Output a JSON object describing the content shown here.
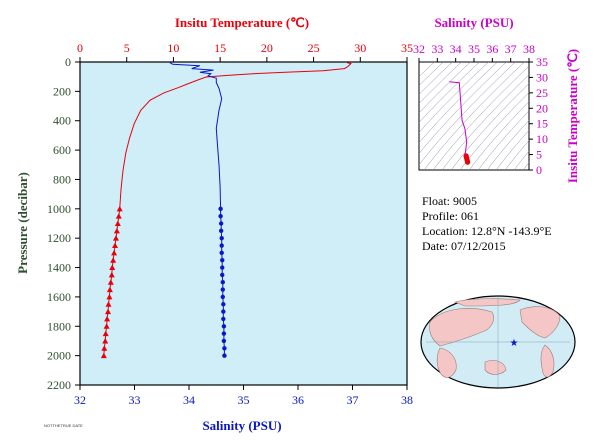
{
  "colors": {
    "temperature": "#e8000b",
    "salinity": "#0a17c8",
    "inset_axis": "#cc00cc",
    "axis_label": "#2f4f2f",
    "plot_bg": "#cfeef7",
    "land": "#f5c6c6",
    "ocean": "#d2ecf5"
  },
  "chart_data": [
    {
      "type": "line",
      "top_axis_title": "Insitu Temperature (℃)",
      "bottom_axis_title": "Salinity (PSU)",
      "ylabel": "Pressure (decibar)",
      "temperature_ticks": [
        "0",
        "5",
        "10",
        "15",
        "20",
        "25",
        "30",
        "35"
      ],
      "salinity_ticks": [
        "32",
        "33",
        "34",
        "35",
        "36",
        "37",
        "38"
      ],
      "pressure_ticks": [
        "0",
        "200",
        "400",
        "600",
        "800",
        "1000",
        "1200",
        "1400",
        "1600",
        "1800",
        "2000",
        "2200"
      ],
      "temperature_range": [
        0,
        35
      ],
      "salinity_range": [
        32,
        38
      ],
      "pressure_range": [
        0,
        2200
      ],
      "series": [
        {
          "kind": "temperature",
          "points": [
            [
              28.6,
              5
            ],
            [
              29.0,
              10
            ],
            [
              28.7,
              30
            ],
            [
              28.3,
              45
            ],
            [
              26.0,
              60
            ],
            [
              22.0,
              70
            ],
            [
              19.0,
              78
            ],
            [
              16.0,
              90
            ],
            [
              13.5,
              102
            ],
            [
              12.5,
              125
            ],
            [
              11.5,
              150
            ],
            [
              10.5,
              175
            ],
            [
              9.0,
              210
            ],
            [
              7.5,
              260
            ],
            [
              6.5,
              330
            ],
            [
              5.8,
              420
            ],
            [
              5.3,
              520
            ],
            [
              4.9,
              620
            ],
            [
              4.6,
              740
            ],
            [
              4.4,
              860
            ],
            [
              4.3,
              950
            ],
            [
              4.25,
              1000
            ]
          ],
          "marked_points": [
            [
              4.25,
              1000
            ],
            [
              4.15,
              1050
            ],
            [
              4.05,
              1100
            ],
            [
              3.95,
              1150
            ],
            [
              3.85,
              1200
            ],
            [
              3.75,
              1250
            ],
            [
              3.65,
              1300
            ],
            [
              3.55,
              1350
            ],
            [
              3.45,
              1400
            ],
            [
              3.4,
              1450
            ],
            [
              3.3,
              1500
            ],
            [
              3.2,
              1550
            ],
            [
              3.15,
              1600
            ],
            [
              3.05,
              1650
            ],
            [
              3.0,
              1700
            ],
            [
              2.9,
              1750
            ],
            [
              2.85,
              1800
            ],
            [
              2.75,
              1850
            ],
            [
              2.7,
              1900
            ],
            [
              2.6,
              1950
            ],
            [
              2.55,
              2000
            ]
          ]
        },
        {
          "kind": "salinity",
          "points": [
            [
              33.65,
              5
            ],
            [
              33.7,
              15
            ],
            [
              34.2,
              25
            ],
            [
              34.05,
              45
            ],
            [
              34.45,
              55
            ],
            [
              34.2,
              70
            ],
            [
              34.4,
              80
            ],
            [
              34.35,
              95
            ],
            [
              34.5,
              110
            ],
            [
              34.5,
              140
            ],
            [
              34.55,
              180
            ],
            [
              34.6,
              250
            ],
            [
              34.55,
              330
            ],
            [
              34.5,
              450
            ],
            [
              34.52,
              550
            ],
            [
              34.55,
              700
            ],
            [
              34.57,
              850
            ],
            [
              34.58,
              1000
            ]
          ],
          "marked_points": [
            [
              34.58,
              1000
            ],
            [
              34.58,
              1050
            ],
            [
              34.59,
              1100
            ],
            [
              34.59,
              1150
            ],
            [
              34.6,
              1200
            ],
            [
              34.6,
              1250
            ],
            [
              34.6,
              1300
            ],
            [
              34.61,
              1350
            ],
            [
              34.61,
              1400
            ],
            [
              34.61,
              1450
            ],
            [
              34.62,
              1500
            ],
            [
              34.62,
              1550
            ],
            [
              34.62,
              1600
            ],
            [
              34.63,
              1650
            ],
            [
              34.63,
              1700
            ],
            [
              34.63,
              1750
            ],
            [
              34.64,
              1800
            ],
            [
              34.64,
              1850
            ],
            [
              34.64,
              1900
            ],
            [
              34.65,
              1950
            ],
            [
              34.65,
              2000
            ]
          ]
        }
      ]
    },
    {
      "type": "scatter",
      "xlabel": "Salinity (PSU)",
      "ylabel": "Insitu Temperature (℃)",
      "x_ticks": [
        "32",
        "33",
        "34",
        "35",
        "36",
        "37",
        "38"
      ],
      "y_ticks": [
        "0",
        "5",
        "10",
        "15",
        "20",
        "25",
        "30",
        "35"
      ],
      "xlim": [
        32,
        38
      ],
      "ylim": [
        0,
        35
      ],
      "points": [
        [
          33.65,
          28.6
        ],
        [
          34.2,
          28.3
        ],
        [
          34.35,
          16.0
        ],
        [
          34.5,
          13.5
        ],
        [
          34.55,
          11.5
        ],
        [
          34.6,
          9.0
        ],
        [
          34.55,
          6.5
        ],
        [
          34.52,
          5.3
        ],
        [
          34.57,
          4.6
        ],
        [
          34.58,
          4.25
        ],
        [
          34.6,
          3.8
        ],
        [
          34.62,
          3.3
        ],
        [
          34.64,
          2.8
        ],
        [
          34.65,
          2.55
        ]
      ]
    }
  ],
  "float_info": {
    "float": "Float:  9005",
    "profile": "Profile:  061",
    "location": "Location:  12.8°N  -143.9°E",
    "date": "Date:  07/12/2015"
  },
  "footer_text": "NOTTHETRUE DATE"
}
